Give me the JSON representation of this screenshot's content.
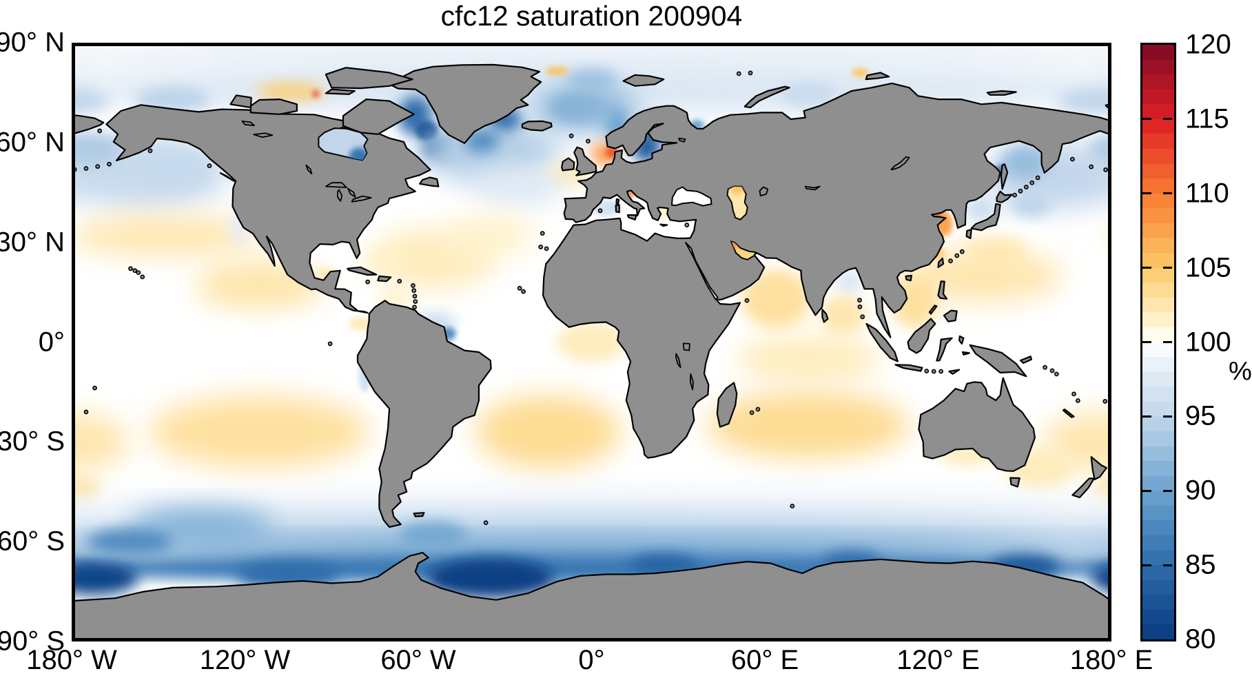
{
  "title": "cfc12 saturation 200904",
  "chart_data": {
    "type": "heatmap",
    "subtype": "global-geographic-field",
    "title": "cfc12 saturation 200904",
    "units": "%",
    "projection": "equirectangular",
    "grid": false,
    "x_axis": {
      "range_deg": [
        -180,
        180
      ],
      "ticks": [
        {
          "label": "180° W",
          "lon": -180
        },
        {
          "label": "120° W",
          "lon": -120
        },
        {
          "label": "60° W",
          "lon": -60
        },
        {
          "label": "0°",
          "lon": 0
        },
        {
          "label": "60° E",
          "lon": 60
        },
        {
          "label": "120° E",
          "lon": 120
        },
        {
          "label": "180° E",
          "lon": 180
        }
      ]
    },
    "y_axis": {
      "range_deg": [
        -90,
        90
      ],
      "ticks": [
        {
          "label": "90° N",
          "lat": 90
        },
        {
          "label": "60° N",
          "lat": 60
        },
        {
          "label": "30° N",
          "lat": 30
        },
        {
          "label": "0°",
          "lat": 0
        },
        {
          "label": "30° S",
          "lat": -30
        },
        {
          "label": "60° S",
          "lat": -60
        },
        {
          "label": "90° S",
          "lat": -90
        }
      ]
    },
    "colorbar": {
      "min": 80,
      "max": 120,
      "band_step": 1,
      "unit_label": "%",
      "tick_values": [
        120,
        115,
        110,
        105,
        100,
        95,
        90,
        85,
        80
      ],
      "tick_labels": [
        "120",
        "115",
        "110",
        "105",
        "100",
        "95",
        "90",
        "85",
        "80"
      ],
      "anchors": [
        [
          80,
          "#0a3a80"
        ],
        [
          85,
          "#2d6cab"
        ],
        [
          90,
          "#6ba3cf"
        ],
        [
          95,
          "#c2d6eb"
        ],
        [
          99,
          "#f0f5fa"
        ],
        [
          100,
          "#ffffff"
        ],
        [
          101,
          "#fff8d8"
        ],
        [
          105,
          "#fcc968"
        ],
        [
          110,
          "#f97b32"
        ],
        [
          115,
          "#dc1f24"
        ],
        [
          120,
          "#7f0a26"
        ]
      ]
    },
    "figure": {
      "background": "#ffffff",
      "land_color": "#8f8f8f",
      "coast_color": "#000000",
      "frame_color": "#000000"
    },
    "regions": [
      {
        "name": "arctic-high-pale",
        "lon": 0,
        "lat": 86,
        "rx": 190,
        "ry": 6,
        "value": 98.5,
        "blur": "l"
      },
      {
        "name": "arctic-band-pale",
        "lon": 0,
        "lat": 76,
        "rx": 190,
        "ry": 7,
        "value": 97,
        "blur": "l"
      },
      {
        "name": "beaufort-blue",
        "lon": -145,
        "lat": 73,
        "rx": 13,
        "ry": 3.5,
        "value": 94.5,
        "blur": "m"
      },
      {
        "name": "chukchi-east-siberian-blue",
        "lon": 177,
        "lat": 72.5,
        "rx": 16,
        "ry": 4,
        "value": 95,
        "blur": "m"
      },
      {
        "name": "kara-sea-blue",
        "lon": 75,
        "lat": 74.5,
        "rx": 10,
        "ry": 3.5,
        "value": 95.5,
        "blur": "m"
      },
      {
        "name": "fram-strait-blue",
        "lon": 0,
        "lat": 79,
        "rx": 9,
        "ry": 3,
        "value": 93,
        "blur": "m"
      },
      {
        "name": "canadian-archipelago-orange",
        "lon": -104,
        "lat": 75.3,
        "rx": 12,
        "ry": 2.6,
        "value": 104.5,
        "blur": "m"
      },
      {
        "name": "canadian-archipelago-red-spot",
        "lon": -95.5,
        "lat": 74.6,
        "rx": 1.2,
        "ry": 1,
        "value": 113,
        "blur": "s"
      },
      {
        "name": "north-greenland-orange-spot",
        "lon": -12,
        "lat": 81.5,
        "rx": 4,
        "ry": 1.4,
        "value": 105,
        "blur": "s"
      },
      {
        "name": "severnaya-zemlya-orange-spot",
        "lon": 93,
        "lat": 81,
        "rx": 3,
        "ry": 1.3,
        "value": 105,
        "blur": "s"
      },
      {
        "name": "baffin-bay-blue",
        "lon": -61,
        "lat": 68,
        "rx": 6,
        "ry": 6,
        "value": 85,
        "blur": "m"
      },
      {
        "name": "davis-strait-core",
        "lon": -57,
        "lat": 63.5,
        "rx": 4,
        "ry": 3,
        "value": 82,
        "blur": "s"
      },
      {
        "name": "labrador-sea-core",
        "lon": -53,
        "lat": 58.5,
        "rx": 6,
        "ry": 3.5,
        "value": 83,
        "blur": "m"
      },
      {
        "name": "north-atlantic-subpolar-blue",
        "lon": -35,
        "lat": 57,
        "rx": 24,
        "ry": 9,
        "value": 94,
        "blur": "l"
      },
      {
        "name": "denmark-strait-core",
        "lon": -30,
        "lat": 67,
        "rx": 6,
        "ry": 3.5,
        "value": 85,
        "blur": "m"
      },
      {
        "name": "irminger-core",
        "lon": -38,
        "lat": 60.5,
        "rx": 6,
        "ry": 3.5,
        "value": 88,
        "blur": "m"
      },
      {
        "name": "jan-mayen-streak",
        "lon": -5,
        "lat": 70.5,
        "rx": 9,
        "ry": 3,
        "value": 87,
        "blur": "m"
      },
      {
        "name": "gin-seas-blue",
        "lon": -2,
        "lat": 70,
        "rx": 18,
        "ry": 7,
        "value": 92,
        "blur": "l"
      },
      {
        "name": "norwegian-coast-blue",
        "lon": 9,
        "lat": 65,
        "rx": 4,
        "ry": 5,
        "value": 90,
        "blur": "m"
      },
      {
        "name": "white-sea-blue",
        "lon": 36.5,
        "lat": 65.2,
        "rx": 2.5,
        "ry": 1.6,
        "value": 90,
        "blur": "s"
      },
      {
        "name": "baltic-sea-blue",
        "lon": 19,
        "lat": 58.5,
        "rx": 5,
        "ry": 4.5,
        "value": 83,
        "blur": "m"
      },
      {
        "name": "gulf-of-bothnia-blue",
        "lon": 20.5,
        "lat": 63.5,
        "rx": 3,
        "ry": 3.5,
        "value": 83,
        "blur": "m"
      },
      {
        "name": "north-sea-orange",
        "lon": 4.5,
        "lat": 56.5,
        "rx": 4.5,
        "ry": 3.5,
        "value": 108,
        "blur": "m"
      },
      {
        "name": "north-sea-core",
        "lon": 7,
        "lat": 57,
        "rx": 2.2,
        "ry": 1.8,
        "value": 112,
        "blur": "s"
      },
      {
        "name": "uk-west-yellow",
        "lon": -8,
        "lat": 50.5,
        "rx": 8,
        "ry": 4,
        "value": 102,
        "blur": "m"
      },
      {
        "name": "ne-atlantic-pale-blue",
        "lon": -25,
        "lat": 47,
        "rx": 16,
        "ry": 6,
        "value": 97.5,
        "blur": "l"
      },
      {
        "name": "west-mediterranean-blue",
        "lon": 5,
        "lat": 40.3,
        "rx": 5,
        "ry": 2.5,
        "value": 96.5,
        "blur": "s"
      },
      {
        "name": "adriatic-orange",
        "lon": 13.6,
        "lat": 44.8,
        "rx": 1.5,
        "ry": 1.2,
        "value": 111,
        "blur": "s"
      },
      {
        "name": "aegean-yellow",
        "lon": 25.5,
        "lat": 39,
        "rx": 2.5,
        "ry": 2,
        "value": 101.5,
        "blur": "s"
      },
      {
        "name": "npac-subpolar-blue-west",
        "lon": 160,
        "lat": 50,
        "rx": 25,
        "ry": 10,
        "value": 95,
        "blur": "l"
      },
      {
        "name": "npac-subpolar-blue-east",
        "lon": -155,
        "lat": 51,
        "rx": 30,
        "ry": 11,
        "value": 95.5,
        "blur": "l"
      },
      {
        "name": "okhotsk-blue",
        "lon": 150,
        "lat": 54,
        "rx": 8,
        "ry": 5,
        "value": 92.5,
        "blur": "m"
      },
      {
        "name": "sakhalin-dark-spot",
        "lon": 141.5,
        "lat": 51.5,
        "rx": 1.2,
        "ry": 1.8,
        "value": 84,
        "blur": "s"
      },
      {
        "name": "bering-sea-blue",
        "lon": -175,
        "lat": 58,
        "rx": 13,
        "ry": 5,
        "value": 94,
        "blur": "m"
      },
      {
        "name": "oyashio-blue",
        "lon": 152,
        "lat": 41,
        "rx": 7,
        "ry": 3,
        "value": 94.5,
        "blur": "m"
      },
      {
        "name": "sea-of-japan-pale",
        "lon": 135,
        "lat": 40,
        "rx": 6,
        "ry": 4,
        "value": 96,
        "blur": "m"
      },
      {
        "name": "bohai-yellow-sea-red-core",
        "lon": 120.3,
        "lat": 38.3,
        "rx": 1.6,
        "ry": 1.5,
        "value": 115.5,
        "blur": "s"
      },
      {
        "name": "yellow-sea-orange",
        "lon": 122,
        "lat": 35.5,
        "rx": 3,
        "ry": 3.8,
        "value": 107.5,
        "blur": "s"
      },
      {
        "name": "east-china-coast-orange",
        "lon": 119.8,
        "lat": 26.5,
        "rx": 2.6,
        "ry": 2,
        "value": 106,
        "blur": "s"
      },
      {
        "name": "kuroshio-yellow",
        "lon": 140,
        "lat": 27.5,
        "rx": 11,
        "ry": 4,
        "value": 102,
        "blur": "m"
      },
      {
        "name": "npac-subtropical-yellow-west",
        "lon": 135,
        "lat": 20,
        "rx": 28,
        "ry": 8,
        "value": 102.5,
        "blur": "l"
      },
      {
        "name": "south-china-sea-yellow",
        "lon": 112,
        "lat": 12,
        "rx": 8,
        "ry": 8,
        "value": 103,
        "blur": "m"
      },
      {
        "name": "npac-yellow-band",
        "lon": -148,
        "lat": 32,
        "rx": 33,
        "ry": 6,
        "value": 102.5,
        "blur": "l"
      },
      {
        "name": "npac-subtropical-yellow-east",
        "lon": -115,
        "lat": 17,
        "rx": 22,
        "ry": 8,
        "value": 102.5,
        "blur": "l"
      },
      {
        "name": "alaska-gyre-pale",
        "lon": -145,
        "lat": 52,
        "rx": 12,
        "ry": 6,
        "value": 95.5,
        "blur": "m"
      },
      {
        "name": "california-coast-pale",
        "lon": -122,
        "lat": 35,
        "rx": 3,
        "ry": 6,
        "value": 98,
        "blur": "m"
      },
      {
        "name": "equatorial-pacific-white",
        "lon": -115,
        "lat": -2,
        "rx": 42,
        "ry": 7,
        "value": 100,
        "blur": "l"
      },
      {
        "name": "natl-subtropical-yellow",
        "lon": -55,
        "lat": 25,
        "rx": 22,
        "ry": 9,
        "value": 102,
        "blur": "l"
      },
      {
        "name": "azores-yellow",
        "lon": -35,
        "lat": 32,
        "rx": 15,
        "ry": 6,
        "value": 101.5,
        "blur": "l"
      },
      {
        "name": "bahamas-yellow",
        "lon": -72,
        "lat": 24,
        "rx": 6,
        "ry": 3,
        "value": 101.5,
        "blur": "m"
      },
      {
        "name": "campeche-yellow",
        "lon": -92,
        "lat": 20.5,
        "rx": 3,
        "ry": 2,
        "value": 102,
        "blur": "s"
      },
      {
        "name": "caribbean-south-yellow",
        "lon": -68,
        "lat": 13,
        "rx": 6,
        "ry": 2.5,
        "value": 101.5,
        "blur": "m"
      },
      {
        "name": "panama-bight-yellow",
        "lon": -80,
        "lat": 5.5,
        "rx": 4,
        "ry": 2,
        "value": 102,
        "blur": "s"
      },
      {
        "name": "guiana-coast-blue",
        "lon": -54,
        "lat": 6,
        "rx": 7,
        "ry": 2.5,
        "value": 95,
        "blur": "m"
      },
      {
        "name": "amazon-plume-core",
        "lon": -49.5,
        "lat": 2.5,
        "rx": 2.5,
        "ry": 2,
        "value": 88,
        "blur": "s"
      },
      {
        "name": "gulf-of-guinea-yellow",
        "lon": 0,
        "lat": 0,
        "rx": 12,
        "ry": 6,
        "value": 102,
        "blur": "m"
      },
      {
        "name": "peru-coast-blue",
        "lon": -78.5,
        "lat": -10,
        "rx": 2,
        "ry": 5,
        "value": 96,
        "blur": "s"
      },
      {
        "name": "arabian-sea-yellow",
        "lon": 64,
        "lat": 13,
        "rx": 12,
        "ry": 9,
        "value": 103,
        "blur": "m"
      },
      {
        "name": "bay-of-bengal-north-pale",
        "lon": 89,
        "lat": 18,
        "rx": 5,
        "ry": 3.5,
        "value": 97,
        "blur": "m"
      },
      {
        "name": "bay-of-bengal-yellow",
        "lon": 87,
        "lat": 8,
        "rx": 8,
        "ry": 6,
        "value": 102.5,
        "blur": "m"
      },
      {
        "name": "equatorial-indian-yellow",
        "lon": 75,
        "lat": -5,
        "rx": 25,
        "ry": 7,
        "value": 102,
        "blur": "l"
      },
      {
        "name": "south-indian-subtropical-yellow",
        "lon": 75,
        "lat": -25,
        "rx": 35,
        "ry": 10,
        "value": 103.5,
        "blur": "l"
      },
      {
        "name": "south-atlantic-subtropical-yellow",
        "lon": -15,
        "lat": -27,
        "rx": 25,
        "ry": 11,
        "value": 103.5,
        "blur": "l"
      },
      {
        "name": "south-pacific-subtropical-yellow",
        "lon": -115,
        "lat": -27,
        "rx": 38,
        "ry": 11,
        "value": 103,
        "blur": "l"
      },
      {
        "name": "south-pacific-west-yellow",
        "lon": 178,
        "lat": -30,
        "rx": 22,
        "ry": 9,
        "value": 102.5,
        "blur": "l"
      },
      {
        "name": "tasman-yellow",
        "lon": 155,
        "lat": -38,
        "rx": 12,
        "ry": 6,
        "value": 102,
        "blur": "m"
      },
      {
        "name": "nz-east-yellow",
        "lon": -178,
        "lat": -44,
        "rx": 8,
        "ry": 4,
        "value": 102.5,
        "blur": "m"
      },
      {
        "name": "great-australian-bight-yellow",
        "lon": 130,
        "lat": -34,
        "rx": 10,
        "ry": 3,
        "value": 102,
        "blur": "m"
      },
      {
        "name": "southern-transition-pale",
        "lon": 0,
        "lat": -50,
        "rx": 190,
        "ry": 5,
        "value": 98.5,
        "blur": "l"
      },
      {
        "name": "southern-band-mid-blue",
        "lon": 0,
        "lat": -58,
        "rx": 190,
        "ry": 5,
        "value": 93.5,
        "blur": "l"
      },
      {
        "name": "southern-band-inner-blue",
        "lon": 0,
        "lat": -64,
        "rx": 190,
        "ry": 4,
        "value": 89,
        "blur": "l"
      },
      {
        "name": "antarctic-coastal-blue",
        "lon": 0,
        "lat": -68,
        "rx": 190,
        "ry": 4,
        "value": 86,
        "blur": "m"
      },
      {
        "name": "weddell-sea-dark",
        "lon": -35,
        "lat": -71,
        "rx": 22,
        "ry": 6,
        "value": 80.5,
        "blur": "m"
      },
      {
        "name": "ross-sea-dark",
        "lon": -172,
        "lat": -71,
        "rx": 15,
        "ry": 5,
        "value": 81,
        "blur": "m"
      },
      {
        "name": "amundsen-sea-dark",
        "lon": -105,
        "lat": -70,
        "rx": 18,
        "ry": 4,
        "value": 85,
        "blur": "m"
      },
      {
        "name": "east-antarctic-dark-1",
        "lon": 25,
        "lat": -67,
        "rx": 12,
        "ry": 3,
        "value": 84,
        "blur": "m"
      },
      {
        "name": "east-antarctic-dark-2",
        "lon": 90,
        "lat": -66,
        "rx": 10,
        "ry": 3,
        "value": 85,
        "blur": "m"
      },
      {
        "name": "east-antarctic-dark-3",
        "lon": 150,
        "lat": -67.5,
        "rx": 12,
        "ry": 3.5,
        "value": 83,
        "blur": "m"
      },
      {
        "name": "south-pacific-sw-sector-blue",
        "lon": -135,
        "lat": -55,
        "rx": 25,
        "ry": 5,
        "value": 91,
        "blur": "l"
      },
      {
        "name": "south-pacific-deep-blue-arc",
        "lon": -160,
        "lat": -60,
        "rx": 15,
        "ry": 4,
        "value": 88,
        "blur": "m"
      },
      {
        "name": "drake-scotia-blue",
        "lon": -55,
        "lat": -58,
        "rx": 12,
        "ry": 4,
        "value": 90.5,
        "blur": "m"
      }
    ],
    "enclosed_seas": [
      {
        "name": "hudson-bay",
        "value": 95,
        "core": {
          "name": "hudson-bay-southeast",
          "value": 86
        }
      },
      {
        "name": "persian-gulf",
        "value": 104,
        "core": {
          "name": "persian-gulf-northwest",
          "value": 109.5
        }
      },
      {
        "name": "red-sea",
        "value": 101.5
      },
      {
        "name": "black-sea",
        "value": 100
      },
      {
        "name": "caspian-sea",
        "value": 102.5,
        "core": {
          "name": "north-caspian",
          "value": 105.5
        }
      }
    ]
  }
}
